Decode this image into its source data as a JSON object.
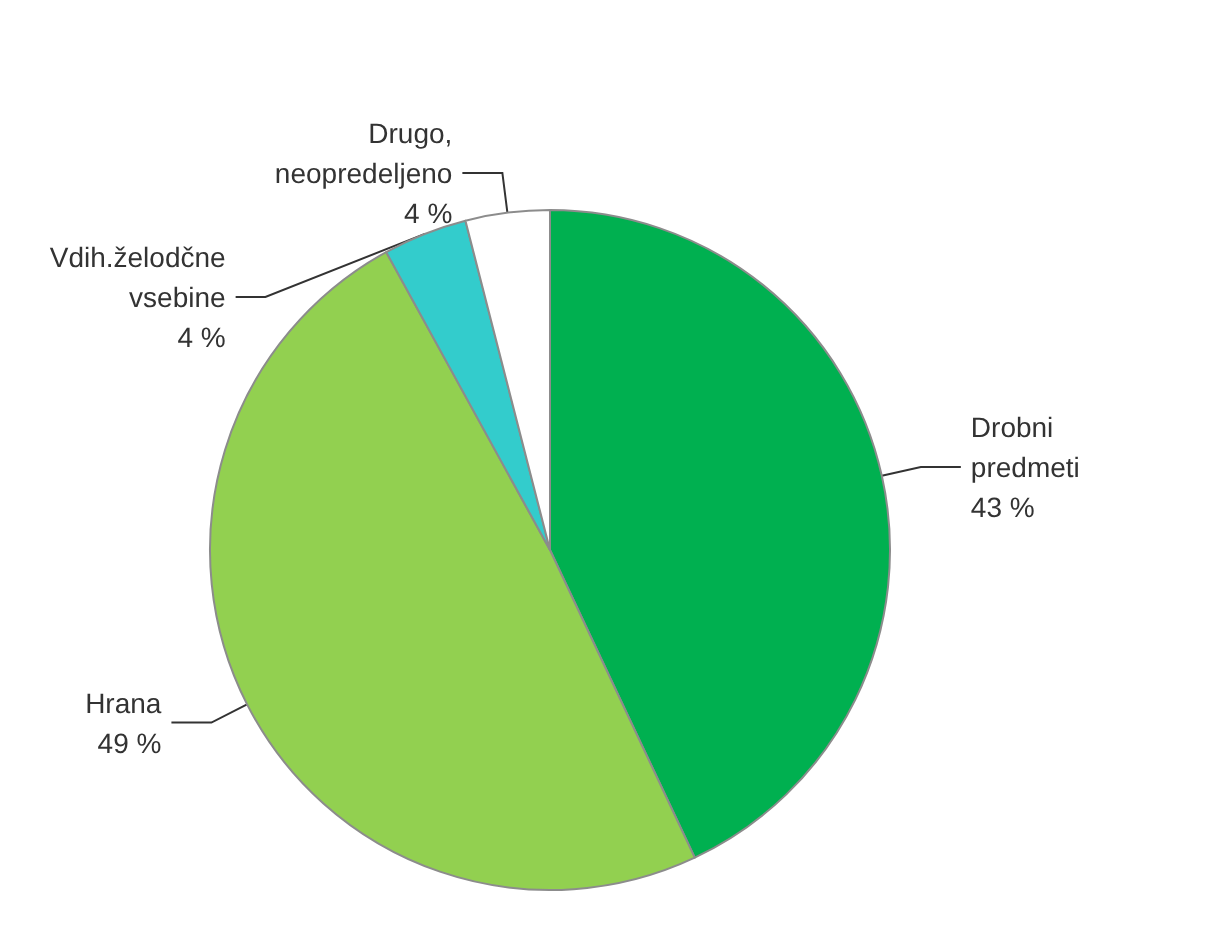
{
  "chart_data": {
    "type": "pie",
    "categories": [
      "Drobni predmeti",
      "Hrana",
      "Vdih.želodčne vsebine",
      "Drugo, neopredeljeno"
    ],
    "values": [
      43,
      49,
      4,
      4
    ],
    "value_labels": [
      "43 %",
      "49 %",
      "4 %",
      "4 %"
    ],
    "colors": [
      "#00b050",
      "#92d050",
      "#33cccc",
      "#ffffff"
    ],
    "legend": false
  }
}
